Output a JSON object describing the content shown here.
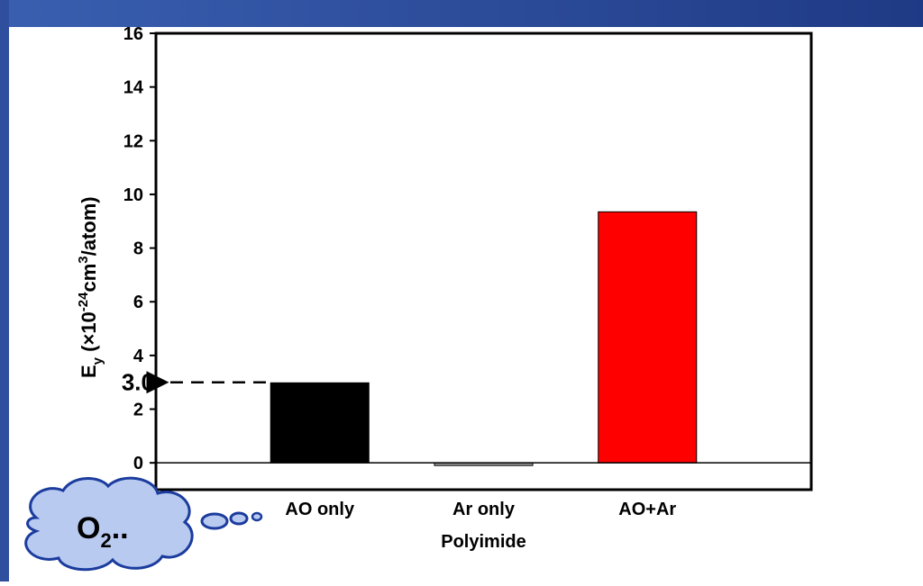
{
  "chart_data": {
    "type": "bar",
    "categories": [
      "AO only",
      "Ar only",
      "AO+Ar"
    ],
    "values": [
      2.98,
      -0.1,
      9.35
    ],
    "colors": [
      "#000000",
      "#9a9a9a",
      "#ff0000"
    ],
    "xlabel": "Polyimide",
    "ylabel": {
      "main": "E",
      "sub": "y",
      "open": " (×10",
      "exp": "-24",
      "unit": "cm",
      "cube": "3",
      "rest": "/atom)"
    },
    "ylim": [
      -1,
      16
    ],
    "yticks": [
      0,
      2,
      4,
      6,
      8,
      10,
      12,
      14,
      16
    ],
    "annotation": {
      "value": 3.0,
      "label": "3.0"
    },
    "callout": {
      "main": "O",
      "sub": "2",
      "rest": ".."
    }
  }
}
